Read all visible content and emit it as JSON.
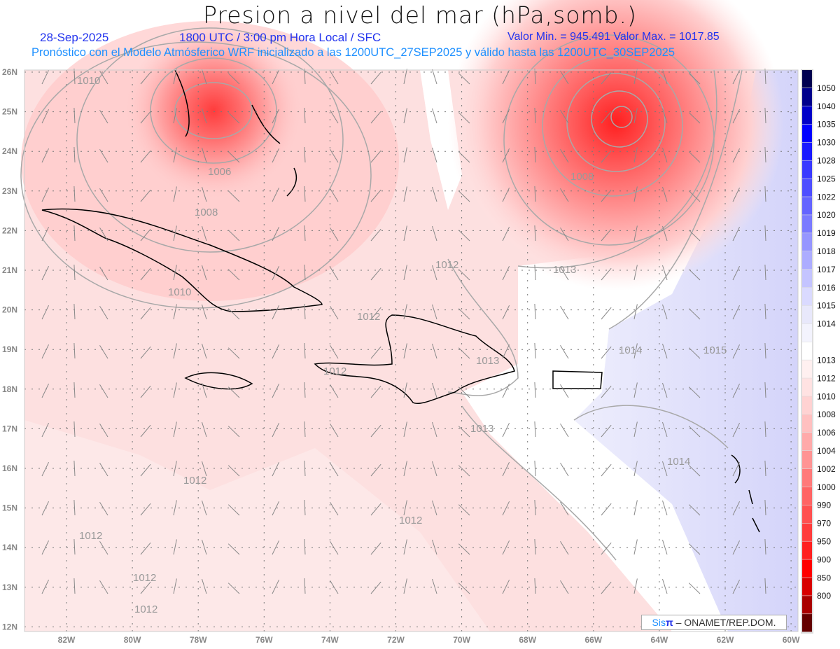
{
  "title": "Presion a nivel del mar (hPa,somb.)",
  "date": "28-Sep-2025",
  "time": "1800 UTC / 3:00 pm Hora Local / SFC",
  "minmax": "Valor Min. = 945.491  Valor Max. = 1017.85",
  "forecast": "Pronóstico con el Modelo Atmósferico WRF inicializado a las 1200UTC_27SEP2025 y válido hasta las  1200UTC_30SEP2025",
  "lon_labels": [
    "82W",
    "80W",
    "78W",
    "76W",
    "74W",
    "72W",
    "70W",
    "68W",
    "66W",
    "64W",
    "62W",
    "60W"
  ],
  "lat_labels": [
    "26N",
    "25N",
    "24N",
    "23N",
    "22N",
    "21N",
    "20N",
    "19N",
    "18N",
    "17N",
    "16N",
    "15N",
    "14N",
    "13N",
    "12N"
  ],
  "colorbar": {
    "labels": [
      "1050",
      "1040",
      "1035",
      "1030",
      "1028",
      "1025",
      "1022",
      "1020",
      "1019",
      "1018",
      "1017",
      "1016",
      "1015",
      "1014",
      "1013",
      "1012",
      "1010",
      "1008",
      "1006",
      "1004",
      "1002",
      "1000",
      "990",
      "970",
      "950",
      "900",
      "850",
      "800"
    ],
    "colors": [
      "#000050",
      "#00008c",
      "#0000c8",
      "#0000ff",
      "#1919ff",
      "#3a3aff",
      "#4e4eff",
      "#6464ff",
      "#7a7aff",
      "#9696ff",
      "#adadff",
      "#c4c4ff",
      "#dadaff",
      "#e8e8fb",
      "#f3f3fd",
      "#ffffff",
      "#fff0f0",
      "#ffe2e2",
      "#ffd2d2",
      "#ffc0c0",
      "#ffaaaa",
      "#ff9494",
      "#ff7a7a",
      "#ff6464",
      "#ff5050",
      "#ff3c3c",
      "#ff2020",
      "#ff0000",
      "#d80000",
      "#aa0000",
      "#640000"
    ]
  },
  "contour_labels": [
    "1010",
    "1006",
    "1008",
    "1010",
    "1008",
    "1012",
    "1013",
    "1014",
    "1015",
    "1013",
    "1013",
    "1014",
    "1012",
    "1012",
    "1012",
    "1012",
    "1012",
    "1012",
    "1012"
  ],
  "legend": {
    "brand_a": "Sis",
    "brand_b": "π",
    "org": "– ONAMET/REP.DOM."
  }
}
